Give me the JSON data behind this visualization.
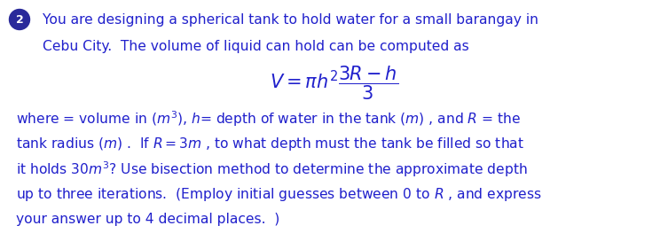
{
  "bg_color": "#ffffff",
  "text_color": "#2020cc",
  "bullet_bg": "#2a2a9a",
  "bullet_text": "2",
  "line1": "You are designing a spherical tank to hold water for a small barangay in",
  "line2": "Cebu City.  The volume of liquid can hold can be computed as",
  "desc_line1": "where = volume in $(m^3)$, $h$= depth of water in the tank $(m)$ , and $R$ = the",
  "desc_line2": "tank radius $(m)$ .  If $R = 3m$ , to what depth must the tank be filled so that",
  "desc_line3": "it holds $30m^3$? Use bisection method to determine the approximate depth",
  "desc_line4": "up to three iterations.  (Employ initial guesses between 0 to $R$ , and express",
  "desc_line5": "your answer up to 4 decimal places.  )",
  "font_size": 11.2,
  "formula_font_size": 15,
  "fig_width": 7.53,
  "fig_height": 2.81,
  "dpi": 100
}
